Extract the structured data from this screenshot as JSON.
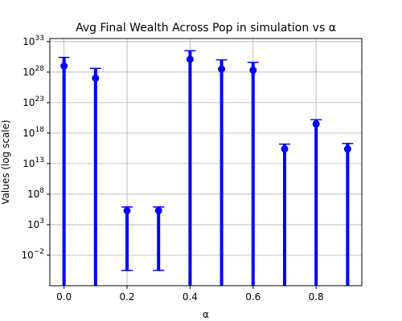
{
  "chart_data": {
    "type": "scatter",
    "title": "Avg Final Wealth Across Pop in simulation vs α",
    "xlabel": "α",
    "ylabel": "Values (log scale)",
    "yscale": "log",
    "xlim": [
      -0.045,
      0.945
    ],
    "ylim_log10": [
      -7,
      33.5
    ],
    "grid": true,
    "x_ticks": [
      0.0,
      0.2,
      0.4,
      0.6,
      0.8
    ],
    "x_tick_labels": [
      "0.0",
      "0.2",
      "0.4",
      "0.6",
      "0.8"
    ],
    "y_ticks_log10": [
      -2,
      3,
      8,
      13,
      18,
      23,
      28,
      33
    ],
    "y_tick_bases": [
      "10",
      "10",
      "10",
      "10",
      "10",
      "10",
      "10",
      "10"
    ],
    "y_tick_exponents": [
      "−2",
      "3",
      "8",
      "13",
      "18",
      "23",
      "28",
      "33"
    ],
    "colors": {
      "series": "#0000ff",
      "grid": "#b0b0b0",
      "axis": "#000000"
    },
    "series": [
      {
        "x": [
          0.0,
          0.1,
          0.2,
          0.3,
          0.4,
          0.5,
          0.6,
          0.7,
          0.8,
          0.9
        ],
        "y_log10": [
          29.0,
          27.0,
          5.3,
          5.3,
          30.1,
          28.5,
          28.3,
          15.4,
          19.5,
          15.4
        ],
        "err_upper_log10": [
          30.4,
          28.6,
          5.9,
          5.9,
          31.5,
          30.0,
          29.6,
          16.2,
          20.2,
          16.3
        ],
        "err_lower_log10": [
          -7,
          -7,
          -4.5,
          -4.5,
          -7,
          -7,
          -7,
          -7,
          -7,
          -7
        ]
      }
    ]
  }
}
